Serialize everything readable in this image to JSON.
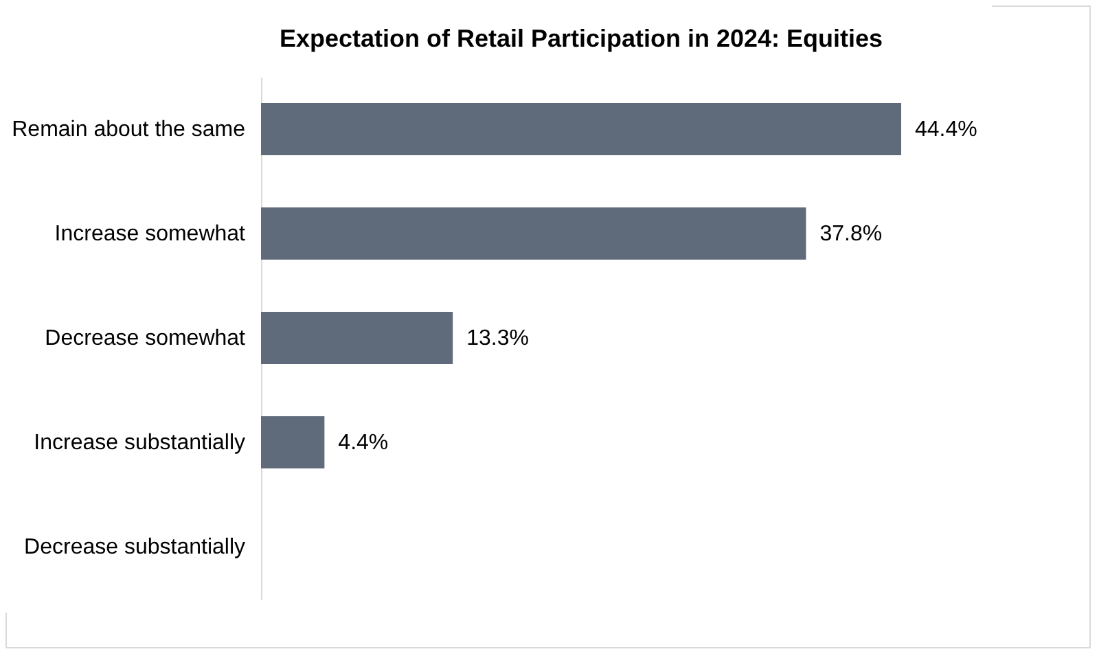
{
  "chart_data": {
    "type": "bar",
    "orientation": "horizontal",
    "title": "Expectation of Retail Participation in 2024: Equities",
    "categories": [
      "Remain about the same",
      "Increase somewhat",
      "Decrease somewhat",
      "Increase substantially",
      "Decrease substantially"
    ],
    "values": [
      44.4,
      37.8,
      13.3,
      4.4,
      0
    ],
    "value_labels": [
      "44.4%",
      "37.8%",
      "13.3%",
      "4.4%",
      null
    ],
    "color": "#5f6b7a"
  }
}
